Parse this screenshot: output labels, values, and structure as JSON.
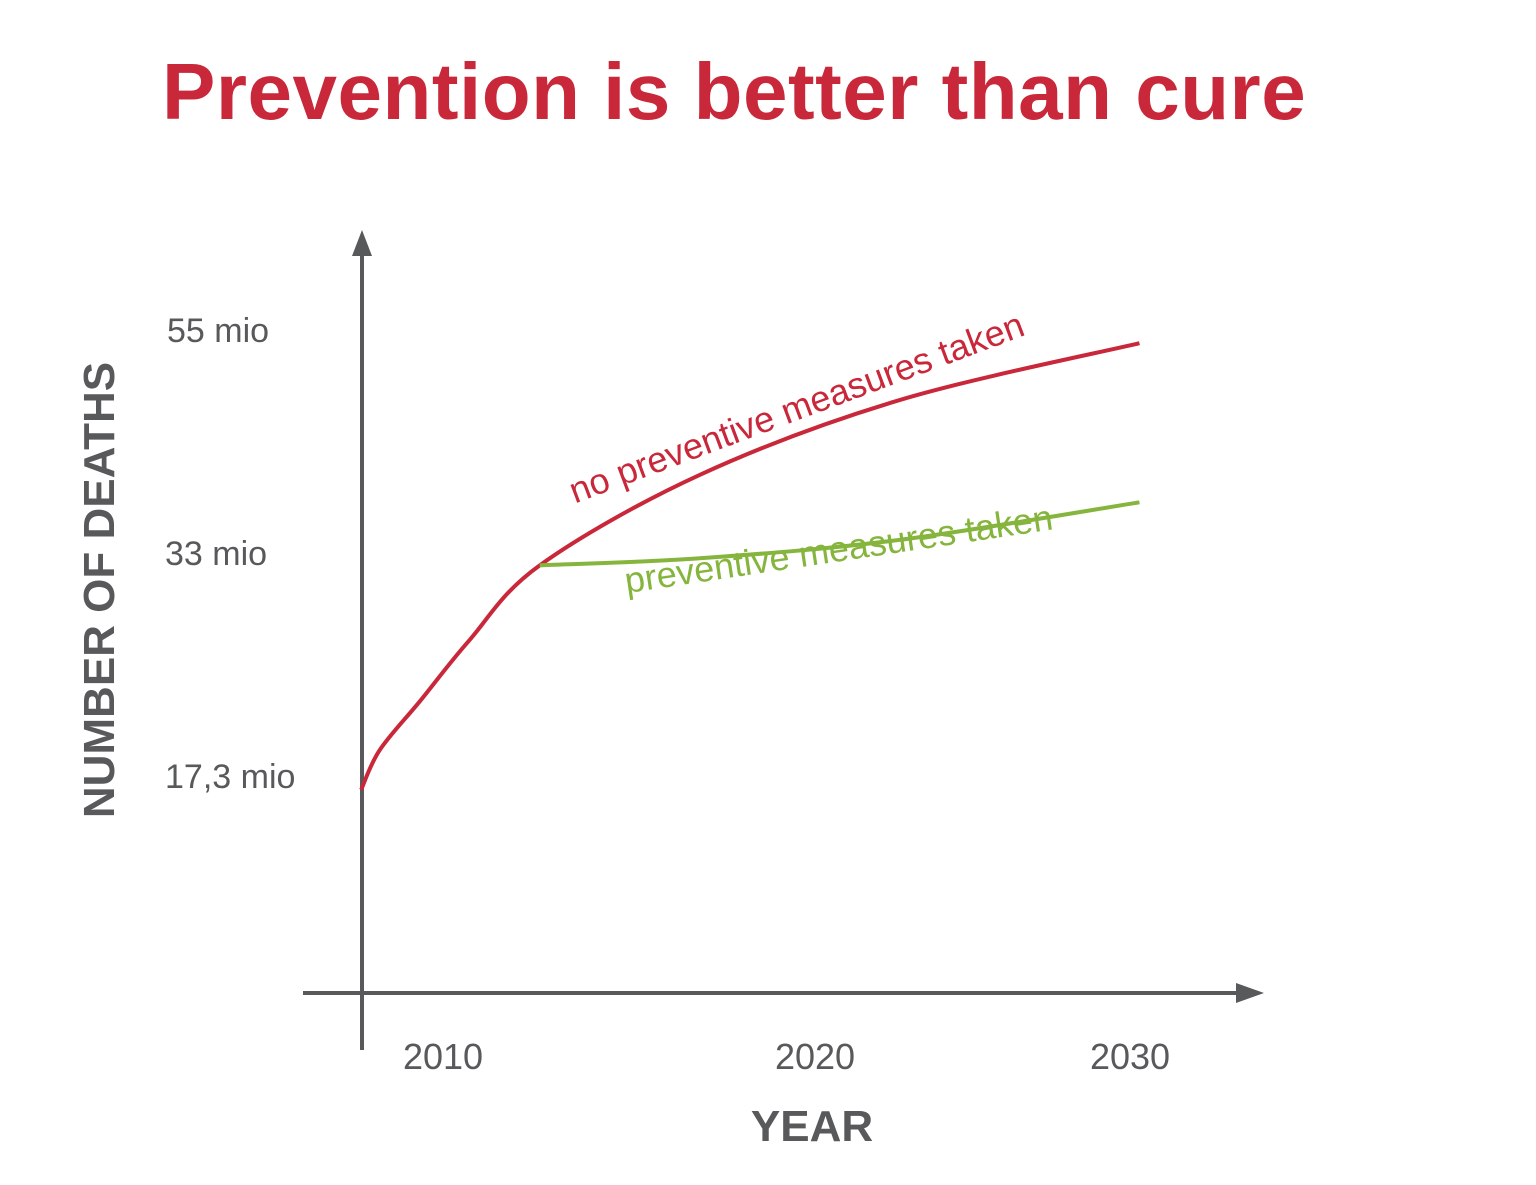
{
  "title": "Prevention is better than cure",
  "chart_data": {
    "type": "line",
    "title": "Prevention is better than cure",
    "xlabel": "YEAR",
    "ylabel": "NUMBER OF DEATHS",
    "x_ticks": [
      {
        "value": 2010,
        "label": "2010"
      },
      {
        "value": 2020,
        "label": "2020"
      },
      {
        "value": 2030,
        "label": "2030"
      }
    ],
    "y_ticks": [
      {
        "value": 17.3,
        "label": "17,3 mio"
      },
      {
        "value": 33,
        "label": "33 mio"
      },
      {
        "value": 55,
        "label": "55 mio"
      }
    ],
    "grid": false,
    "series": [
      {
        "name": "no preventive measures taken",
        "color": "#c8283a",
        "x": [
          2007.8,
          2008.3,
          2009.4,
          2010.7,
          2012.6,
          2016.9,
          2022.7,
          2030.3
        ],
        "y": [
          16.4,
          19.2,
          22.7,
          26.9,
          32.2,
          40.8,
          48.2,
          53.8
        ]
      },
      {
        "name": "preventive measures taken",
        "color": "#86b53e",
        "x": [
          2012.6,
          2016.9,
          2022.7,
          2030.3
        ],
        "y": [
          32.2,
          32.7,
          34.4,
          38.1
        ]
      }
    ],
    "axis_color": "#58595b"
  }
}
